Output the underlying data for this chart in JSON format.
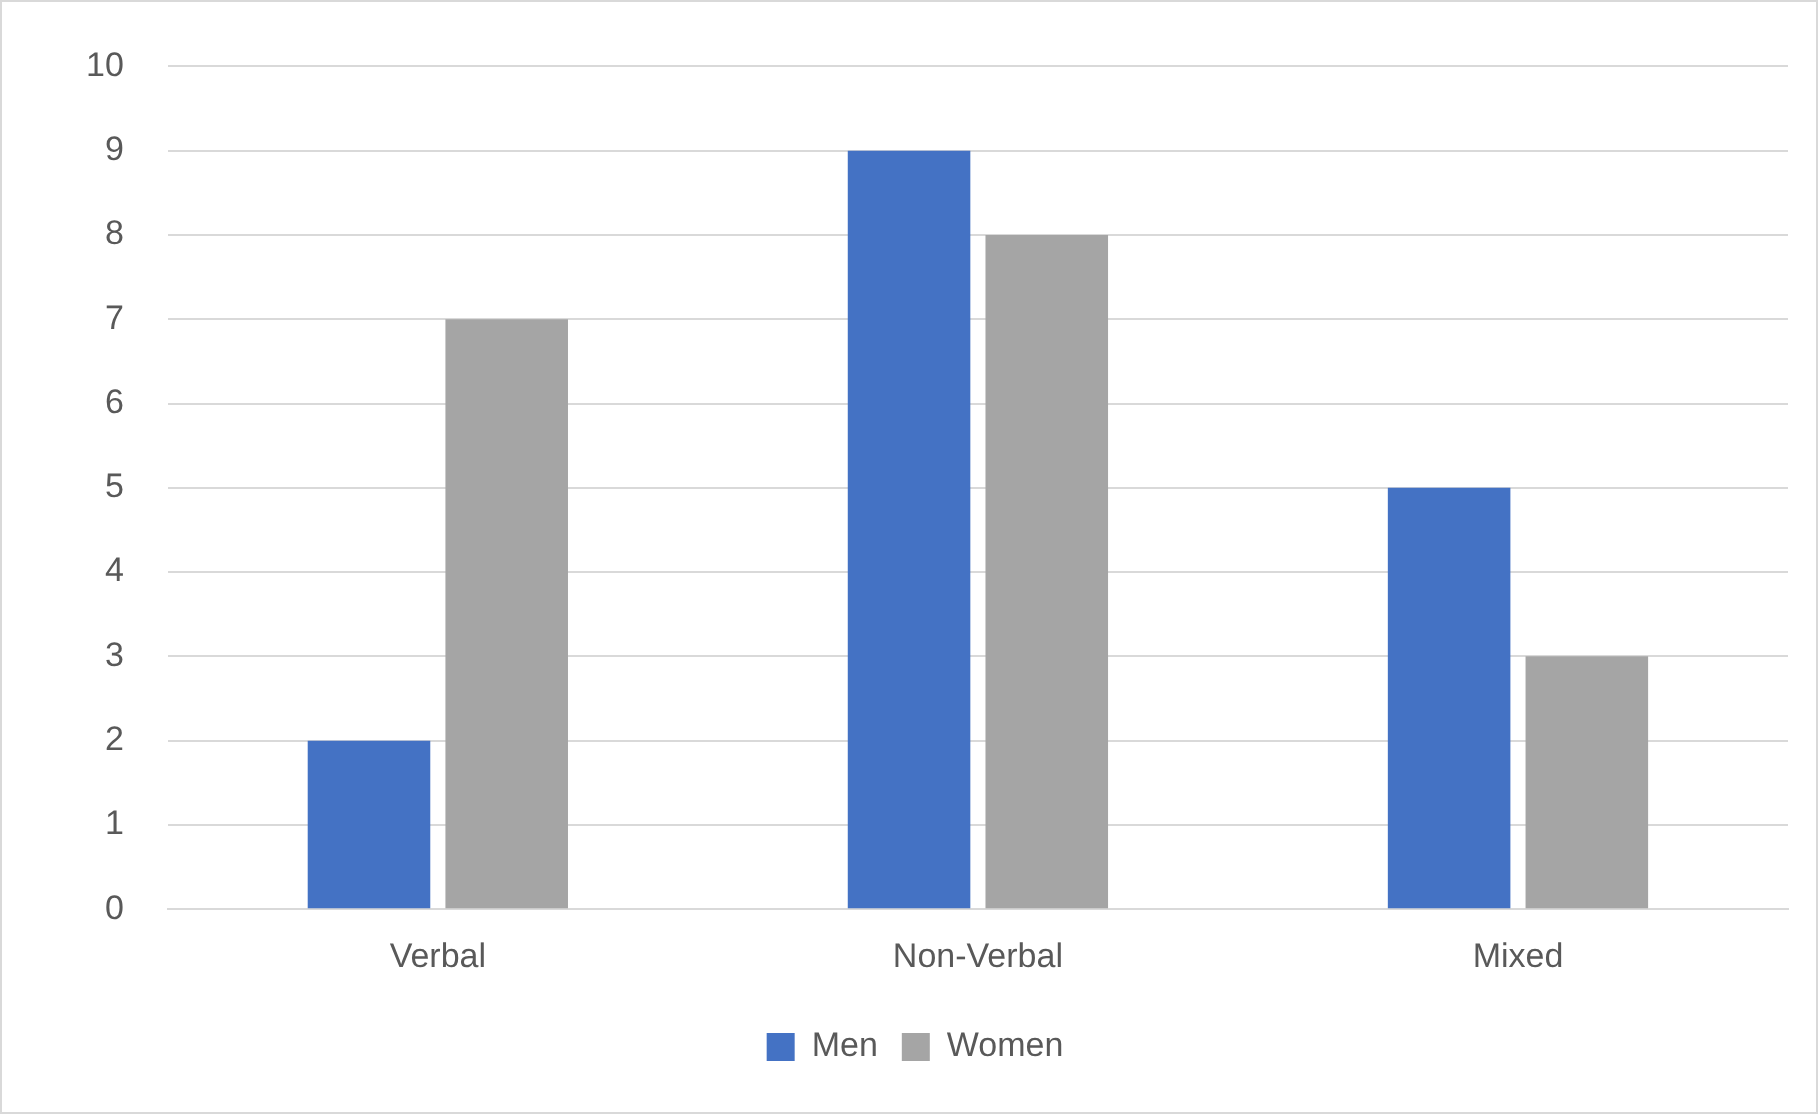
{
  "chart_data": {
    "type": "bar",
    "categories": [
      "Verbal",
      "Non-Verbal",
      "Mixed"
    ],
    "series": [
      {
        "name": "Men",
        "color": "#4472c4",
        "values": [
          2,
          9,
          5
        ]
      },
      {
        "name": "Women",
        "color": "#a5a5a5",
        "values": [
          7,
          8,
          3
        ]
      }
    ],
    "ylim": [
      0,
      10
    ],
    "yticks": [
      0,
      1,
      2,
      3,
      4,
      5,
      6,
      7,
      8,
      9,
      10
    ],
    "grid": "y",
    "legend": "bottom"
  }
}
